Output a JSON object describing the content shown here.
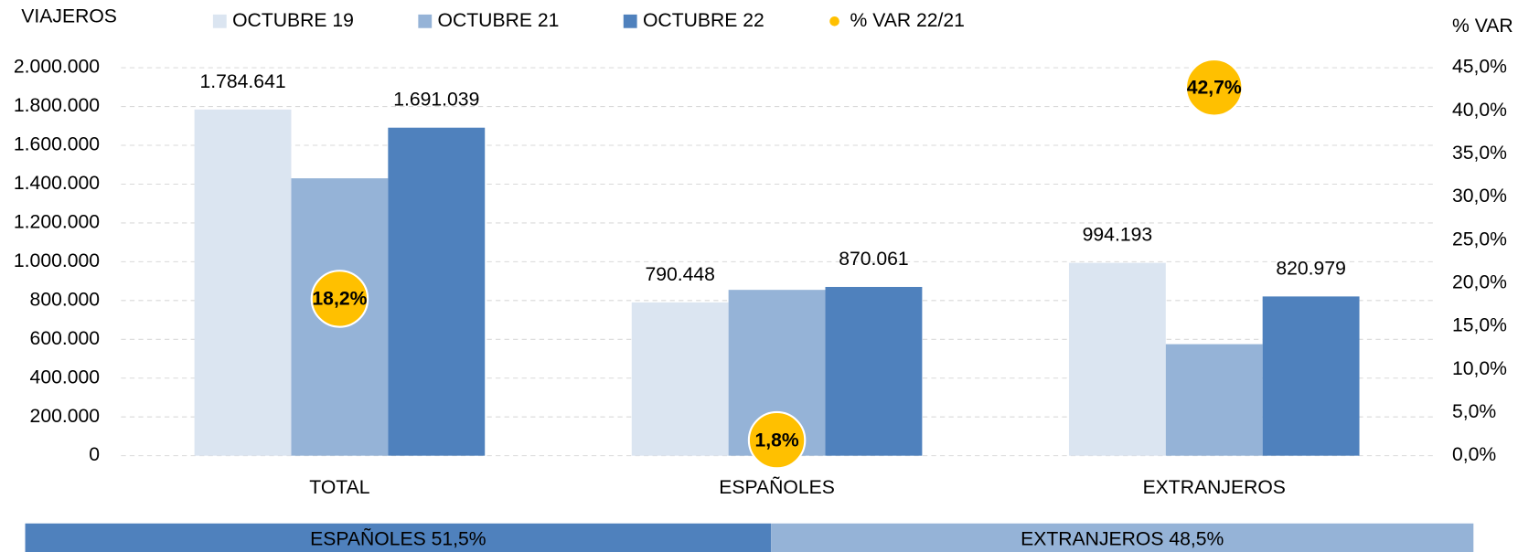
{
  "chart_data": {
    "type": "bar",
    "y_axis_label": "VIAJEROS",
    "y2_axis_label": "% VAR",
    "categories": [
      "TOTAL",
      "ESPAÑOLES",
      "EXTRANJEROS"
    ],
    "series": [
      {
        "name": "OCTUBRE 19",
        "color": "#dbe5f1",
        "values": [
          1784641,
          790448,
          994193
        ],
        "value_labels": [
          "1.784.641",
          "790.448",
          "994.193"
        ]
      },
      {
        "name": "OCTUBRE 21",
        "color": "#95b3d7",
        "values": [
          1430000,
          855000,
          575000
        ]
      },
      {
        "name": "OCTUBRE 22",
        "color": "#4f81bd",
        "values": [
          1691039,
          870061,
          820979
        ],
        "value_labels": [
          "1.691.039",
          "870.061",
          "820.979"
        ]
      },
      {
        "name": "% VAR 22/21",
        "color": "#ffc000",
        "axis": "y2",
        "values": [
          18.2,
          1.8,
          42.7
        ],
        "value_labels": [
          "18,2%",
          "1,8%",
          "42,7%"
        ]
      }
    ],
    "ylim": [
      0,
      2000000
    ],
    "yticks": [
      0,
      {
        "value": 200000,
        "label": "200.000"
      },
      {
        "value": 400000,
        "label": "400.000"
      },
      {
        "value": 600000,
        "label": "600.000"
      },
      {
        "value": 800000,
        "label": "800.000"
      },
      {
        "value": 1000000,
        "label": "1.000.000"
      },
      {
        "value": 1200000,
        "label": "1.200.000"
      },
      {
        "value": 1400000,
        "label": "1.400.000"
      },
      {
        "value": 1600000,
        "label": "1.600.000"
      },
      {
        "value": 1800000,
        "label": "1.800.000"
      },
      {
        "value": 2000000,
        "label": "2.000.000"
      }
    ],
    "y2lim": [
      0,
      45
    ],
    "y2ticks": [
      {
        "value": 0,
        "label": "0,0%"
      },
      {
        "value": 5,
        "label": "5,0%"
      },
      {
        "value": 10,
        "label": "10,0%"
      },
      {
        "value": 15,
        "label": "15,0%"
      },
      {
        "value": 20,
        "label": "20,0%"
      },
      {
        "value": 25,
        "label": "25,0%"
      },
      {
        "value": 30,
        "label": "30,0%"
      },
      {
        "value": 35,
        "label": "35,0%"
      },
      {
        "value": 40,
        "label": "40,0%"
      },
      {
        "value": 45,
        "label": "45,0%"
      }
    ],
    "grid": true,
    "legend": "top"
  },
  "share_bar": {
    "segments": [
      {
        "label": "ESPAÑOLES 51,5%",
        "value": 51.5,
        "color": "#4f81bd"
      },
      {
        "label": "EXTRANJEROS 48,5%",
        "value": 48.5,
        "color": "#95b3d7"
      }
    ]
  }
}
